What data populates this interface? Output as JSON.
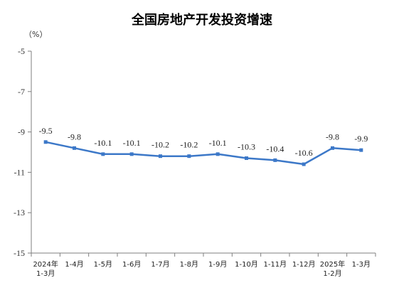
{
  "chart_data": {
    "type": "line",
    "title": "全国房地产开发投资增速",
    "unit_label": "（%）",
    "ylim": [
      -15,
      -5
    ],
    "yticks": [
      -5,
      -7,
      -9,
      -11,
      -13,
      -15
    ],
    "grid": false,
    "legend": "none",
    "categories": [
      [
        "2024年",
        "1-3月"
      ],
      [
        "1-4月"
      ],
      [
        "1-5月"
      ],
      [
        "1-6月"
      ],
      [
        "1-7月"
      ],
      [
        "1-8月"
      ],
      [
        "1-9月"
      ],
      [
        "1-10月"
      ],
      [
        "1-11月"
      ],
      [
        "1-12月"
      ],
      [
        "2025年",
        "1-2月"
      ],
      [
        "1-3月"
      ]
    ],
    "values": [
      -9.5,
      -9.8,
      -10.1,
      -10.1,
      -10.2,
      -10.2,
      -10.1,
      -10.3,
      -10.4,
      -10.6,
      -9.8,
      -9.9
    ],
    "data_labels": [
      "-9.5",
      "-9.8",
      "-10.1",
      "-10.1",
      "-10.2",
      "-10.2",
      "-10.1",
      "-10.3",
      "-10.4",
      "-10.6",
      "-9.8",
      "-9.9"
    ],
    "series_color": "#3c78c8",
    "axis_color": "#7f7f7f"
  }
}
